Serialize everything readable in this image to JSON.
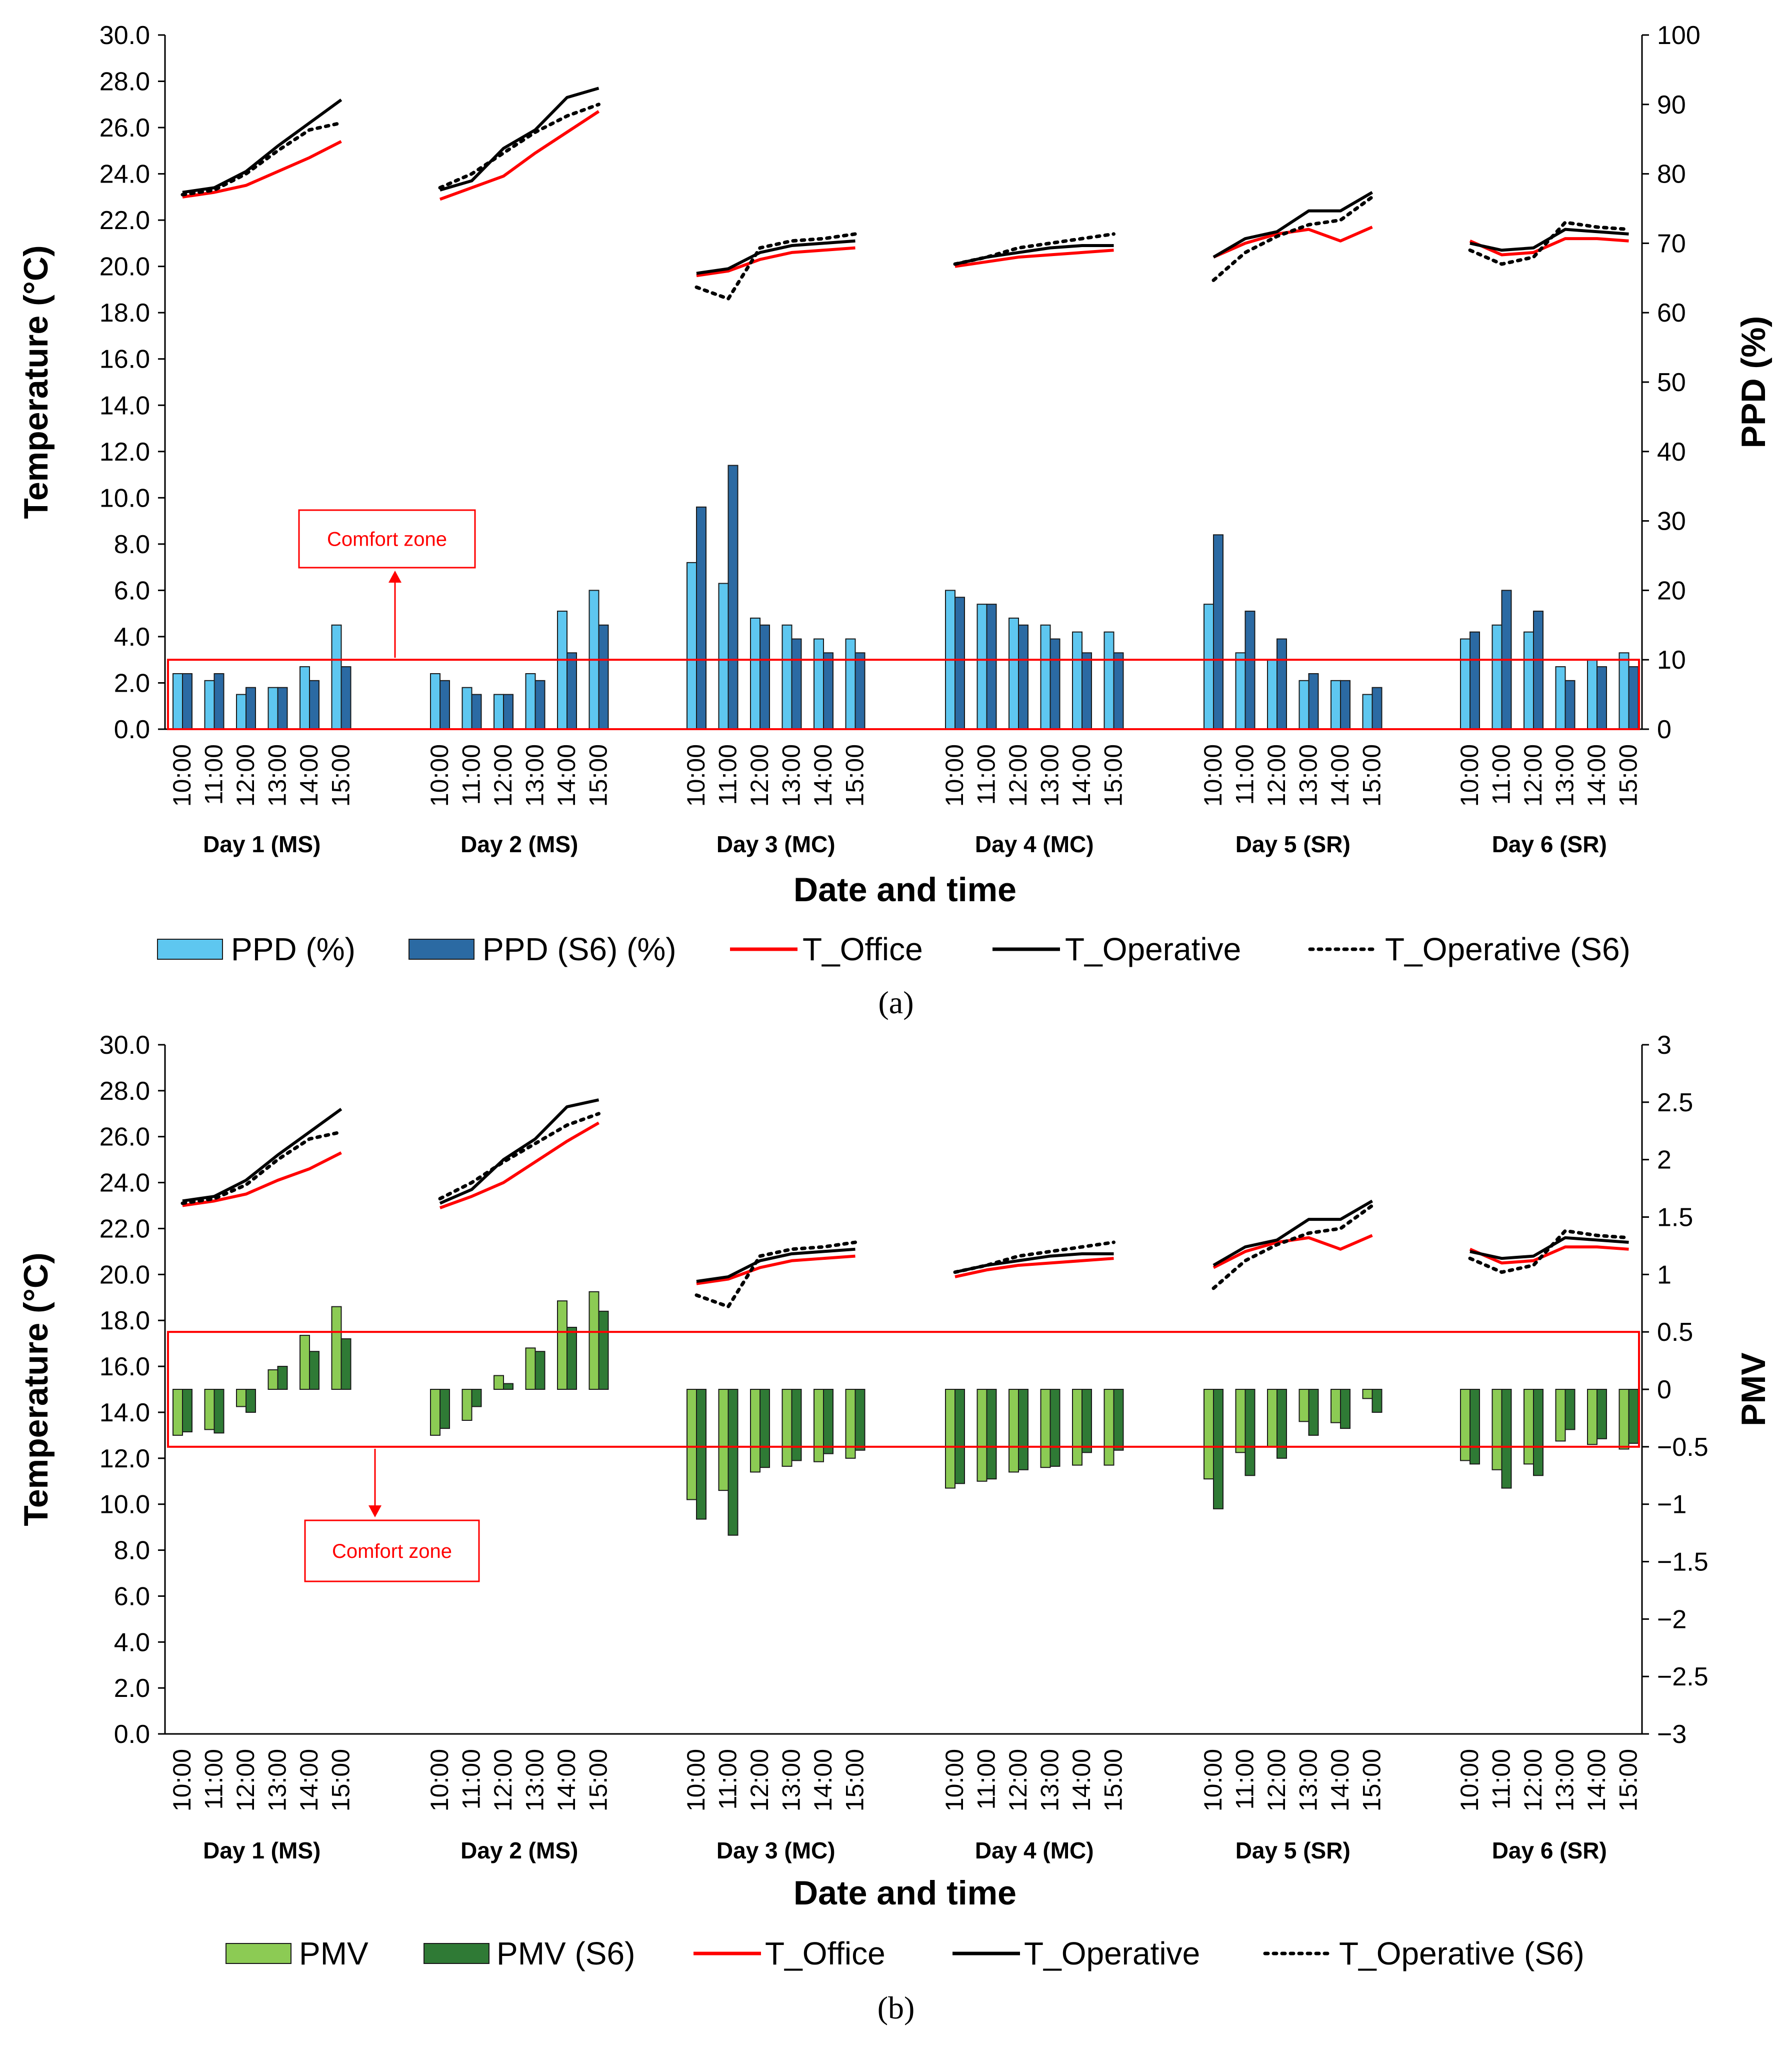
{
  "colors": {
    "ppd": "#5ec7f0",
    "ppd_s6": "#2b6aa3",
    "pmv": "#8ccb54",
    "pmv_s6": "#2f7a35",
    "t_office": "#ff0000",
    "t_operative": "#000000",
    "comfort": "#ff0000"
  },
  "chart_data": [
    {
      "id": "a",
      "type": "bar+line",
      "caption": "(a)",
      "xlabel": "Date and time",
      "ylabel_left": "Temperature (°C)",
      "ylabel_right": "PPD (%)",
      "ylim_left": [
        0,
        30
      ],
      "ylim_right": [
        0,
        100
      ],
      "yticks_left": [
        "0.0",
        "2.0",
        "4.0",
        "6.0",
        "8.0",
        "10.0",
        "12.0",
        "14.0",
        "16.0",
        "18.0",
        "20.0",
        "22.0",
        "24.0",
        "26.0",
        "28.0",
        "30.0"
      ],
      "yticks_right": [
        "0",
        "10",
        "20",
        "30",
        "40",
        "50",
        "60",
        "70",
        "80",
        "90",
        "100"
      ],
      "days": [
        "Day 1 (MS)",
        "Day 2 (MS)",
        "Day 3 (MC)",
        "Day 4 (MC)",
        "Day 5 (SR)",
        "Day 6 (SR)"
      ],
      "times": [
        "10:00",
        "11:00",
        "12:00",
        "13:00",
        "14:00",
        "15:00"
      ],
      "comfort_label": "Comfort zone",
      "comfort_zone": [
        0,
        10
      ],
      "legend": [
        "PPD (%)",
        "PPD (S6) (%)",
        "T_Office",
        "T_Operative",
        "T_Operative (S6)"
      ],
      "bars": [
        {
          "name": "PPD (%)",
          "values": [
            [
              8,
              7,
              5,
              6,
              9,
              15
            ],
            [
              8,
              6,
              5,
              8,
              17,
              20
            ],
            [
              24,
              21,
              16,
              15,
              13,
              13
            ],
            [
              20,
              18,
              16,
              15,
              14,
              14
            ],
            [
              18,
              11,
              10,
              7,
              7,
              5
            ],
            [
              13,
              15,
              14,
              9,
              10,
              11
            ]
          ]
        },
        {
          "name": "PPD (S6) (%)",
          "values": [
            [
              8,
              8,
              6,
              6,
              7,
              9
            ],
            [
              7,
              5,
              5,
              7,
              11,
              15
            ],
            [
              32,
              38,
              15,
              13,
              11,
              11
            ],
            [
              19,
              18,
              15,
              13,
              11,
              11
            ],
            [
              28,
              17,
              13,
              8,
              7,
              6
            ],
            [
              14,
              20,
              17,
              7,
              9,
              9
            ]
          ]
        }
      ],
      "lines": [
        {
          "name": "T_Office",
          "values": [
            [
              23.0,
              23.2,
              23.5,
              24.1,
              24.7,
              25.4
            ],
            [
              22.9,
              23.4,
              23.9,
              24.9,
              25.8,
              26.7
            ],
            [
              19.6,
              19.8,
              20.3,
              20.6,
              20.7,
              20.8
            ],
            [
              20.0,
              20.2,
              20.4,
              20.5,
              20.6,
              20.7
            ],
            [
              20.4,
              21.0,
              21.4,
              21.6,
              21.1,
              21.7
            ],
            [
              21.1,
              20.5,
              20.6,
              21.2,
              21.2,
              21.1
            ]
          ]
        },
        {
          "name": "T_Operative",
          "values": [
            [
              23.2,
              23.4,
              24.1,
              25.2,
              26.2,
              27.2
            ],
            [
              23.3,
              23.7,
              25.1,
              25.9,
              27.3,
              27.7
            ],
            [
              19.7,
              19.9,
              20.6,
              20.9,
              21.0,
              21.1
            ],
            [
              20.1,
              20.4,
              20.6,
              20.8,
              20.9,
              20.9
            ],
            [
              20.4,
              21.2,
              21.5,
              22.4,
              22.4,
              23.2
            ],
            [
              21.0,
              20.7,
              20.8,
              21.6,
              21.5,
              21.4
            ]
          ]
        },
        {
          "name": "T_Operative (S6)",
          "values": [
            [
              23.1,
              23.3,
              24.0,
              25.0,
              25.9,
              26.2
            ],
            [
              23.4,
              24.0,
              24.9,
              25.8,
              26.5,
              27.0
            ],
            [
              19.1,
              18.6,
              20.8,
              21.1,
              21.2,
              21.4
            ],
            [
              20.1,
              20.4,
              20.8,
              21.0,
              21.2,
              21.4
            ],
            [
              19.4,
              20.6,
              21.3,
              21.8,
              22.0,
              23.0
            ],
            [
              20.7,
              20.1,
              20.4,
              21.9,
              21.7,
              21.6
            ]
          ]
        }
      ]
    },
    {
      "id": "b",
      "type": "bar+line",
      "caption": "(b)",
      "xlabel": "Date and time",
      "ylabel_left": "Temperature (°C)",
      "ylabel_right": "PMV",
      "ylim_left": [
        0,
        30
      ],
      "ylim_right": [
        -3,
        3
      ],
      "yticks_left": [
        "0.0",
        "2.0",
        "4.0",
        "6.0",
        "8.0",
        "10.0",
        "12.0",
        "14.0",
        "16.0",
        "18.0",
        "20.0",
        "22.0",
        "24.0",
        "26.0",
        "28.0",
        "30.0"
      ],
      "yticks_right": [
        "−3",
        "−2.5",
        "−2",
        "−1.5",
        "−1",
        "−0.5",
        "0",
        "0.5",
        "1",
        "1.5",
        "2",
        "2.5",
        "3"
      ],
      "days": [
        "Day 1 (MS)",
        "Day 2 (MS)",
        "Day 3 (MC)",
        "Day 4 (MC)",
        "Day 5 (SR)",
        "Day 6 (SR)"
      ],
      "times": [
        "10:00",
        "11:00",
        "12:00",
        "13:00",
        "14:00",
        "15:00"
      ],
      "comfort_label": "Comfort zone",
      "comfort_zone": [
        -0.5,
        0.5
      ],
      "legend": [
        "PMV",
        "PMV (S6)",
        "T_Office",
        "T_Operative",
        "T_Operative (S6)"
      ],
      "bars": [
        {
          "name": "PMV",
          "values": [
            [
              -0.4,
              -0.35,
              -0.15,
              0.17,
              0.47,
              0.72
            ],
            [
              -0.4,
              -0.27,
              0.12,
              0.36,
              0.77,
              0.85
            ],
            [
              -0.96,
              -0.88,
              -0.72,
              -0.67,
              -0.63,
              -0.6
            ],
            [
              -0.86,
              -0.8,
              -0.72,
              -0.68,
              -0.66,
              -0.66
            ],
            [
              -0.78,
              -0.55,
              -0.5,
              -0.28,
              -0.29,
              -0.08
            ],
            [
              -0.62,
              -0.7,
              -0.65,
              -0.45,
              -0.48,
              -0.52
            ]
          ]
        },
        {
          "name": "PMV (S6)",
          "values": [
            [
              -0.37,
              -0.38,
              -0.2,
              0.2,
              0.33,
              0.44
            ],
            [
              -0.34,
              -0.15,
              0.05,
              0.33,
              0.54,
              0.68
            ],
            [
              -1.13,
              -1.27,
              -0.68,
              -0.62,
              -0.56,
              -0.53
            ],
            [
              -0.82,
              -0.78,
              -0.7,
              -0.67,
              -0.55,
              -0.53
            ],
            [
              -1.04,
              -0.75,
              -0.6,
              -0.4,
              -0.34,
              -0.2
            ],
            [
              -0.65,
              -0.86,
              -0.75,
              -0.35,
              -0.43,
              -0.47
            ]
          ]
        }
      ],
      "lines": [
        {
          "name": "T_Office",
          "values": [
            [
              23.0,
              23.2,
              23.5,
              24.1,
              24.6,
              25.3
            ],
            [
              22.9,
              23.4,
              24.0,
              24.9,
              25.8,
              26.6
            ],
            [
              19.6,
              19.8,
              20.3,
              20.6,
              20.7,
              20.8
            ],
            [
              19.9,
              20.2,
              20.4,
              20.5,
              20.6,
              20.7
            ],
            [
              20.3,
              21.0,
              21.4,
              21.6,
              21.1,
              21.7
            ],
            [
              21.1,
              20.5,
              20.6,
              21.2,
              21.2,
              21.1
            ]
          ]
        },
        {
          "name": "T_Operative",
          "values": [
            [
              23.2,
              23.4,
              24.1,
              25.2,
              26.2,
              27.2
            ],
            [
              23.1,
              23.7,
              25.0,
              25.9,
              27.3,
              27.6
            ],
            [
              19.7,
              19.9,
              20.6,
              20.9,
              21.0,
              21.1
            ],
            [
              20.1,
              20.4,
              20.6,
              20.8,
              20.9,
              20.9
            ],
            [
              20.4,
              21.2,
              21.5,
              22.4,
              22.4,
              23.2
            ],
            [
              21.0,
              20.7,
              20.8,
              21.6,
              21.5,
              21.4
            ]
          ]
        },
        {
          "name": "T_Operative (S6)",
          "values": [
            [
              23.1,
              23.3,
              23.9,
              25.0,
              25.9,
              26.2
            ],
            [
              23.3,
              24.0,
              24.9,
              25.7,
              26.5,
              27.0
            ],
            [
              19.1,
              18.6,
              20.8,
              21.1,
              21.2,
              21.4
            ],
            [
              20.1,
              20.4,
              20.8,
              21.0,
              21.2,
              21.4
            ],
            [
              19.4,
              20.6,
              21.3,
              21.8,
              22.0,
              23.0
            ],
            [
              20.7,
              20.1,
              20.4,
              21.9,
              21.7,
              21.6
            ]
          ]
        }
      ]
    }
  ]
}
